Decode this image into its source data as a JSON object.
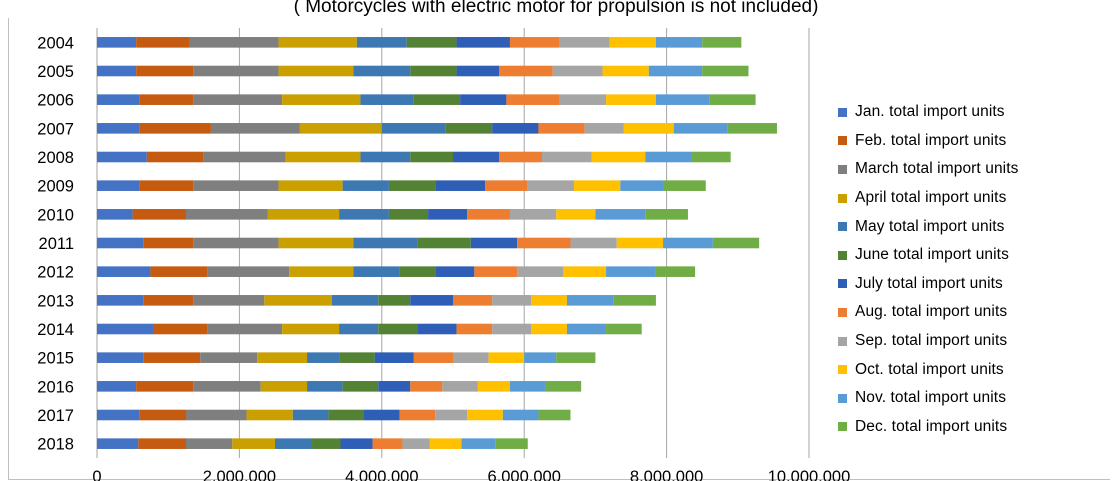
{
  "subtitle": "( Motorcycles with electric motor for propulsion  is not included)",
  "chart_data": {
    "type": "bar",
    "orientation": "horizontal",
    "stacked": true,
    "title": "",
    "subtitle": "( Motorcycles with electric motor for propulsion  is not included)",
    "xlabel": "",
    "ylabel": "",
    "xlim": [
      0,
      10000000
    ],
    "x_ticks": [
      "0",
      "2,000,000",
      "4,000,000",
      "6,000,000",
      "8,000,000",
      "10,000,000"
    ],
    "grid": "vertical",
    "legend_position": "right",
    "categories": [
      "2004",
      "2005",
      "2006",
      "2007",
      "2008",
      "2009",
      "2010",
      "2011",
      "2012",
      "2013",
      "2014",
      "2015",
      "2016",
      "2017",
      "2018"
    ],
    "series": [
      {
        "name": "Jan. total import units",
        "color": "#4472c4",
        "values": [
          550000,
          550000,
          600000,
          600000,
          700000,
          600000,
          500000,
          650000,
          750000,
          650000,
          800000,
          650000,
          550000,
          600000,
          580000
        ]
      },
      {
        "name": "Feb. total import units",
        "color": "#c55a11",
        "values": [
          750000,
          800000,
          750000,
          1000000,
          800000,
          750000,
          750000,
          700000,
          800000,
          700000,
          750000,
          800000,
          800000,
          650000,
          670000
        ]
      },
      {
        "name": "March total import units",
        "color": "#7f7f7f",
        "values": [
          1250000,
          1200000,
          1250000,
          1250000,
          1150000,
          1200000,
          1150000,
          1200000,
          1150000,
          1000000,
          1050000,
          800000,
          950000,
          850000,
          650000
        ]
      },
      {
        "name": "April total import units",
        "color": "#c9a000",
        "values": [
          1100000,
          1050000,
          1100000,
          1150000,
          1050000,
          900000,
          1000000,
          1050000,
          900000,
          950000,
          800000,
          700000,
          650000,
          650000,
          600000
        ]
      },
      {
        "name": "May total import units",
        "color": "#3e78b2",
        "values": [
          700000,
          800000,
          750000,
          900000,
          700000,
          650000,
          700000,
          900000,
          650000,
          650000,
          550000,
          450000,
          500000,
          500000,
          520000
        ]
      },
      {
        "name": "June total import units",
        "color": "#548235",
        "values": [
          700000,
          650000,
          650000,
          650000,
          600000,
          650000,
          550000,
          750000,
          500000,
          450000,
          550000,
          500000,
          500000,
          500000,
          400000
        ]
      },
      {
        "name": "July total import units",
        "color": "#2e5eb5",
        "values": [
          750000,
          600000,
          650000,
          650000,
          650000,
          700000,
          550000,
          650000,
          550000,
          600000,
          550000,
          550000,
          450000,
          500000,
          450000
        ]
      },
      {
        "name": "Aug. total import units",
        "color": "#ed7d31",
        "values": [
          700000,
          750000,
          750000,
          650000,
          600000,
          600000,
          600000,
          750000,
          600000,
          550000,
          500000,
          550000,
          450000,
          500000,
          420000
        ]
      },
      {
        "name": "Sep. total import units",
        "color": "#a5a5a5",
        "values": [
          700000,
          700000,
          650000,
          550000,
          700000,
          650000,
          650000,
          650000,
          650000,
          550000,
          550000,
          500000,
          500000,
          450000,
          380000
        ]
      },
      {
        "name": "Oct. total import units",
        "color": "#ffc000",
        "values": [
          650000,
          650000,
          700000,
          700000,
          750000,
          650000,
          550000,
          650000,
          600000,
          500000,
          500000,
          500000,
          450000,
          500000,
          450000
        ]
      },
      {
        "name": "Nov. total import units",
        "color": "#5b9bd5",
        "values": [
          650000,
          750000,
          750000,
          750000,
          650000,
          600000,
          700000,
          700000,
          700000,
          650000,
          550000,
          450000,
          500000,
          500000,
          480000
        ]
      },
      {
        "name": "Dec. total import units",
        "color": "#70ad47",
        "values": [
          550000,
          650000,
          650000,
          700000,
          550000,
          600000,
          600000,
          650000,
          550000,
          600000,
          500000,
          550000,
          500000,
          450000,
          450000
        ]
      }
    ]
  }
}
